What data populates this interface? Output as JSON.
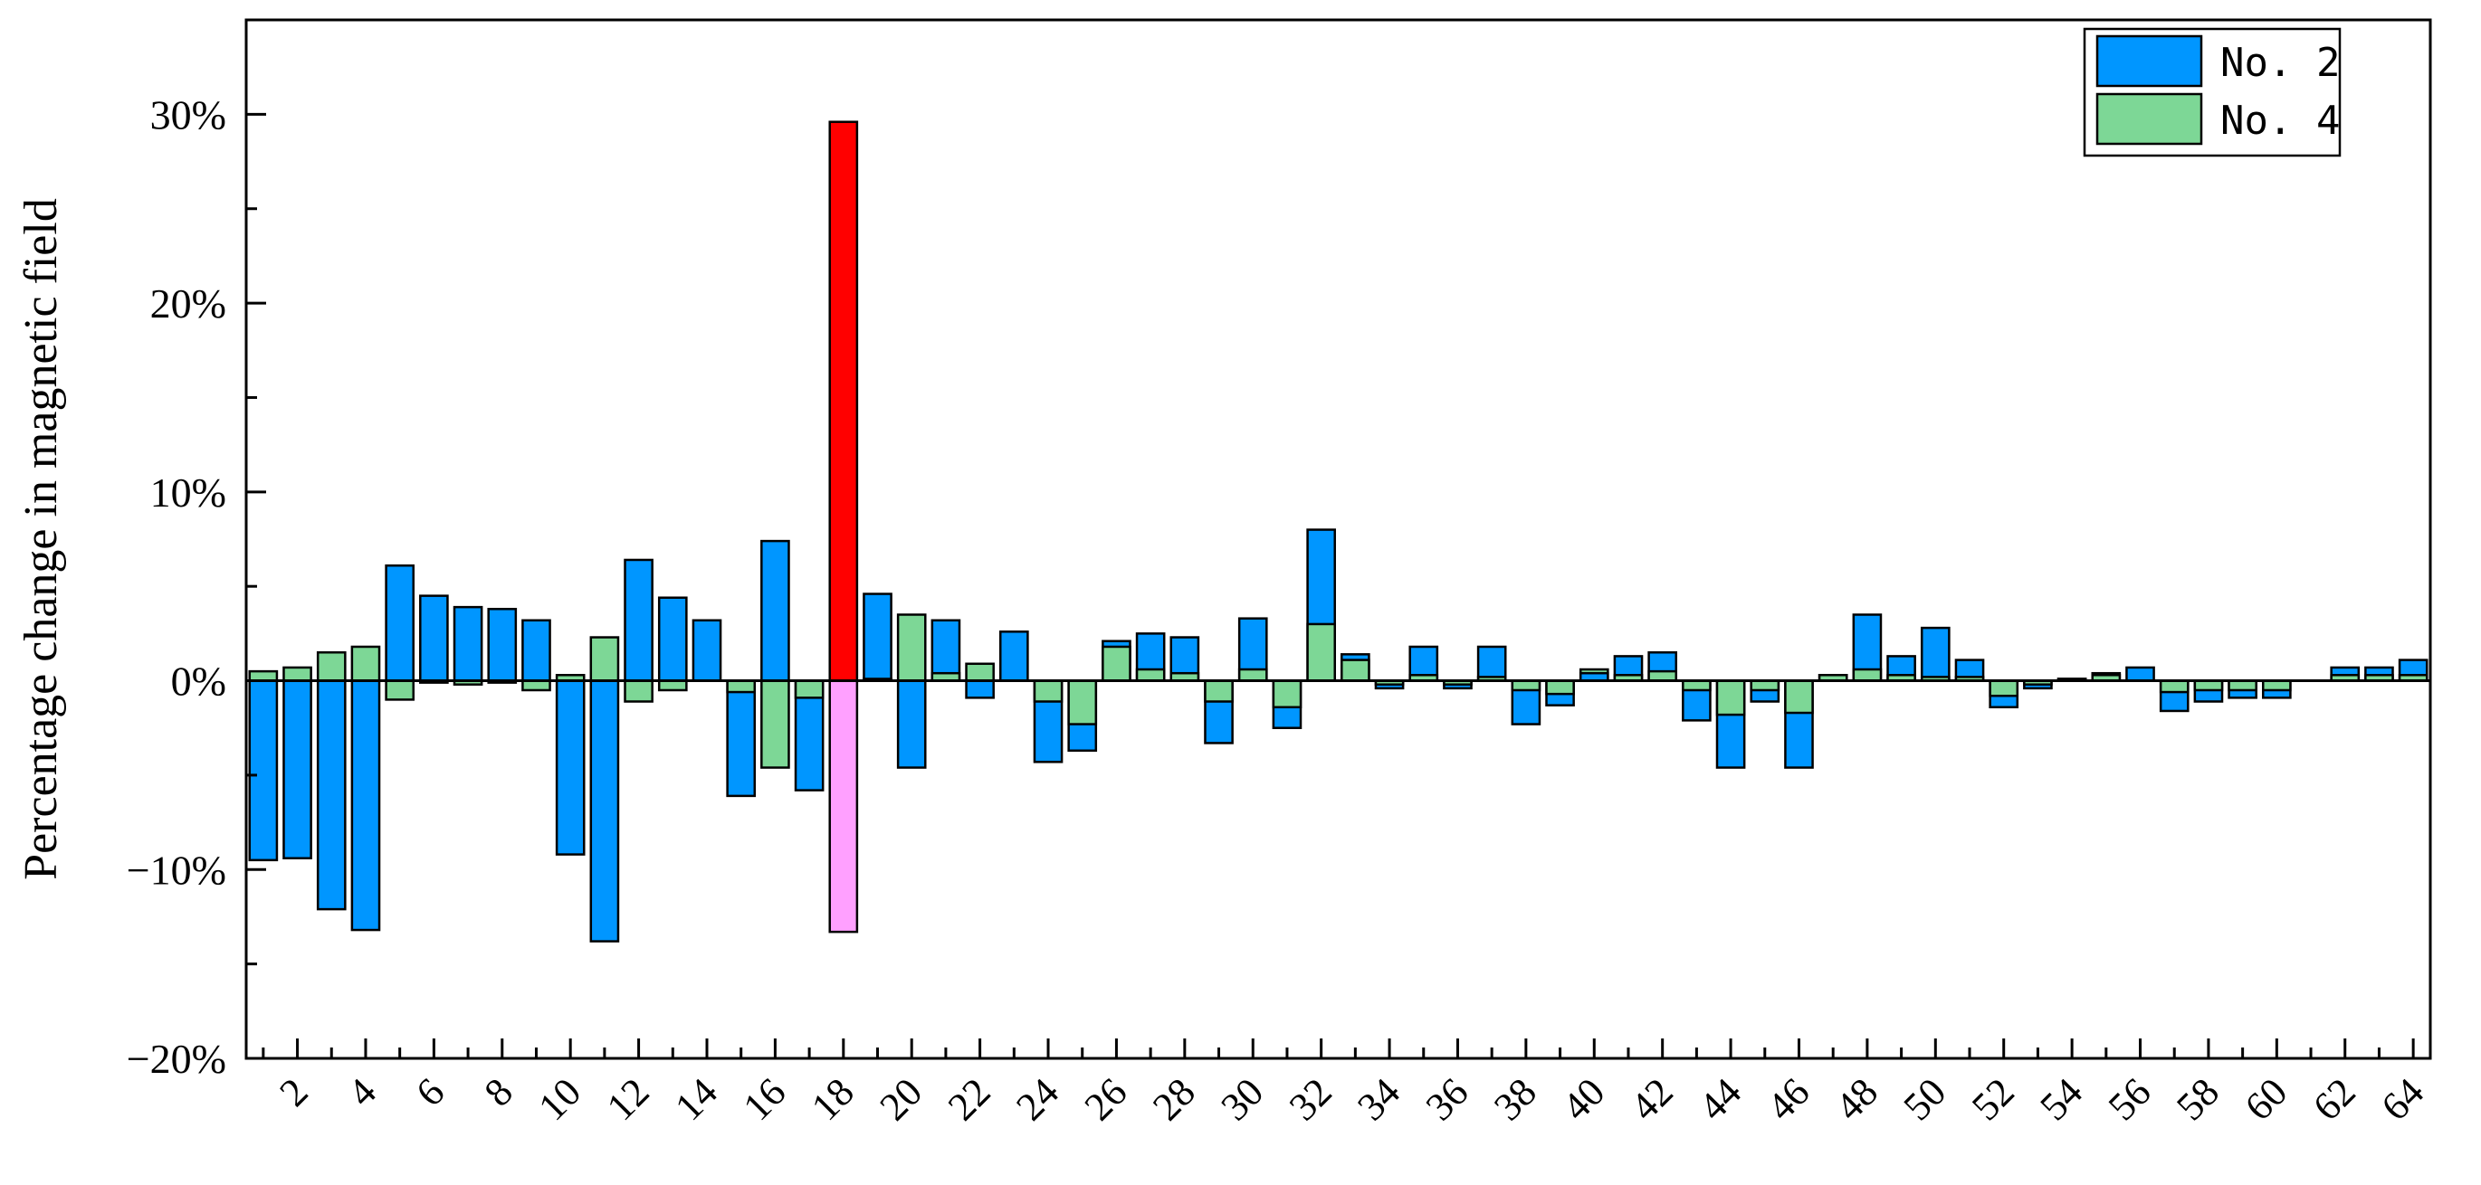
{
  "chart_data": {
    "type": "bar",
    "stacked": "overlay",
    "title": "",
    "xlabel": "",
    "ylabel": "Percentage change in magnetic field",
    "ylim": [
      -20,
      35
    ],
    "xlim": [
      0,
      64
    ],
    "x_tick_labels": [
      "2",
      "4",
      "6",
      "8",
      "10",
      "12",
      "14",
      "16",
      "18",
      "20",
      "22",
      "24",
      "26",
      "28",
      "30",
      "32",
      "34",
      "36",
      "38",
      "40",
      "42",
      "44",
      "46",
      "48",
      "50",
      "52",
      "54",
      "56",
      "58",
      "60",
      "62",
      "64"
    ],
    "y_ticks": [
      -20,
      -10,
      0,
      10,
      20,
      30
    ],
    "y_tick_labels": [
      "−20%",
      "−10%",
      "0%",
      "10%",
      "20%",
      "30%"
    ],
    "grid": false,
    "legend_position": "top-right",
    "categories": [
      1,
      2,
      3,
      4,
      5,
      6,
      7,
      8,
      9,
      10,
      11,
      12,
      13,
      14,
      15,
      16,
      17,
      18,
      19,
      20,
      21,
      22,
      23,
      24,
      25,
      26,
      27,
      28,
      29,
      30,
      31,
      32,
      33,
      34,
      35,
      36,
      37,
      38,
      39,
      40,
      41,
      42,
      43,
      44,
      45,
      46,
      47,
      48,
      49,
      50,
      51,
      52,
      53,
      54,
      55,
      56,
      57,
      58,
      59,
      60,
      61,
      62,
      63,
      64
    ],
    "series": [
      {
        "name": "No. 2",
        "color": "#0096ff",
        "values": [
          -9.5,
          -9.4,
          -12.1,
          -13.2,
          6.1,
          4.5,
          3.9,
          3.8,
          3.2,
          -9.2,
          -13.8,
          6.4,
          4.4,
          3.2,
          -6.1,
          7.4,
          -5.8,
          29.6,
          4.6,
          -4.6,
          3.2,
          -0.9,
          2.6,
          -4.3,
          -3.7,
          2.1,
          2.5,
          2.3,
          -3.3,
          3.3,
          -2.5,
          8.0,
          1.4,
          -0.4,
          1.8,
          -0.4,
          1.8,
          -2.3,
          -1.3,
          0.4,
          1.3,
          1.5,
          -2.1,
          -4.6,
          -1.1,
          -4.6,
          0.3,
          3.5,
          1.3,
          2.8,
          1.1,
          -1.4,
          -0.4,
          0.1,
          0.4,
          0.7,
          -1.6,
          -1.1,
          -0.9,
          -0.9,
          0.0,
          0.7,
          0.7,
          1.1
        ]
      },
      {
        "name": "No. 4",
        "color": "#7dd796",
        "values": [
          0.5,
          0.7,
          1.5,
          1.8,
          -1.0,
          -0.1,
          -0.2,
          -0.1,
          -0.5,
          0.3,
          2.3,
          -1.1,
          -0.5,
          0.0,
          -0.6,
          -4.6,
          -0.9,
          -13.3,
          0.1,
          3.5,
          0.4,
          0.9,
          0.0,
          -1.1,
          -2.3,
          1.8,
          0.6,
          0.4,
          -1.1,
          0.6,
          -1.4,
          3.0,
          1.1,
          -0.2,
          0.3,
          -0.2,
          0.2,
          -0.5,
          -0.7,
          0.6,
          0.3,
          0.5,
          -0.5,
          -1.8,
          -0.5,
          -1.7,
          0.3,
          0.6,
          0.3,
          0.2,
          0.2,
          -0.8,
          -0.2,
          0.1,
          0.3,
          0.0,
          -0.6,
          -0.5,
          -0.5,
          -0.5,
          0.0,
          0.3,
          0.3,
          0.3
        ]
      }
    ],
    "highlight": {
      "index": 18,
      "positive_color": "#ff0000",
      "negative_color": "#ffa0ff"
    },
    "legend": [
      {
        "label": "No. 2",
        "color": "#0096ff"
      },
      {
        "label": "No. 4",
        "color": "#7dd796"
      }
    ]
  }
}
